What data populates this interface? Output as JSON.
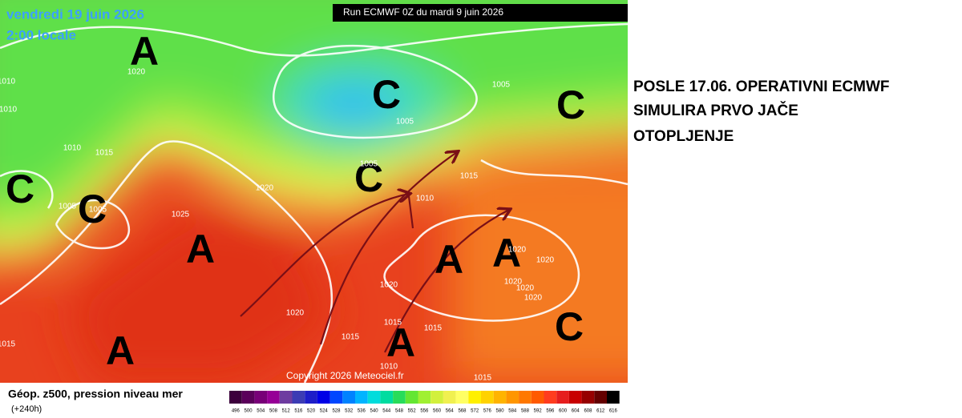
{
  "map": {
    "valid_date": "vendredi 19 juin 2026",
    "local_time": "2:00 locale",
    "run": "Run ECMWF 0Z du mardi 9 juin 2026",
    "copyright": "Copyright 2026 Meteociel.fr",
    "systems": [
      "A",
      "C",
      "C",
      "C",
      "C",
      "C",
      "A",
      "A",
      "A",
      "A",
      "A",
      "C"
    ],
    "isobars": [
      "1020",
      "1010",
      "1010",
      "1015",
      "1005",
      "1005",
      "1025",
      "1020",
      "1005",
      "1005",
      "1005",
      "1015",
      "1010",
      "1020",
      "1020",
      "1015",
      "1015",
      "1015",
      "1020",
      "1020",
      "1020",
      "1020",
      "1020",
      "1010",
      "1015",
      "1010",
      "1015"
    ]
  },
  "legend": {
    "title": "Géop. z500, pression niveau mer",
    "lead": "(+240h)",
    "labels": [
      "496",
      "500",
      "504",
      "508",
      "512",
      "516",
      "520",
      "524",
      "528",
      "532",
      "536",
      "540",
      "544",
      "548",
      "552",
      "556",
      "560",
      "564",
      "568",
      "572",
      "576",
      "580",
      "584",
      "588",
      "592",
      "596",
      "600",
      "604",
      "608",
      "612",
      "616"
    ],
    "colors": [
      "#3c003c",
      "#5a005a",
      "#780078",
      "#960096",
      "#6e3ca0",
      "#3c3cb4",
      "#1e1ec8",
      "#0000e6",
      "#0046ff",
      "#0082ff",
      "#00b4ff",
      "#00dcdc",
      "#00dca0",
      "#28dc5a",
      "#64e632",
      "#a0f032",
      "#d2f03c",
      "#f0f050",
      "#ffff64",
      "#fff000",
      "#ffd200",
      "#ffb400",
      "#ff9600",
      "#ff7800",
      "#ff5a00",
      "#ff3c1e",
      "#e61e1e",
      "#c80000",
      "#960000",
      "#640000",
      "#000000"
    ]
  },
  "caption": [
    "POSLE 17.06. OPERATIVNI ECMWF",
    "SIMULIRA PRVO JAČE",
    "OTOPLJENJE"
  ]
}
